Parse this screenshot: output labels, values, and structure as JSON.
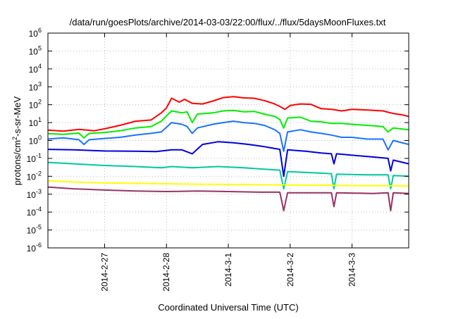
{
  "chart_data": {
    "type": "line",
    "title": "/data/run/goesPlots/archive/2014-03-03/22:00/flux/../flux/5daysMoonFluxes.txt",
    "xlabel": "Coordinated Universal Time (UTC)",
    "ylabel": {
      "pre": "protons/cm",
      "sup": "2",
      "post": "-s-sr-MeV"
    },
    "y_scale": "log",
    "ylim": [
      1e-06,
      1000000.0
    ],
    "y_ticks": [
      {
        "value": 1e-06,
        "exp": "-6"
      },
      {
        "value": 1e-05,
        "exp": "-5"
      },
      {
        "value": 0.0001,
        "exp": "-4"
      },
      {
        "value": 0.001,
        "exp": "-3"
      },
      {
        "value": 0.01,
        "exp": "-2"
      },
      {
        "value": 0.1,
        "exp": "-1"
      },
      {
        "value": 1,
        "exp": "0"
      },
      {
        "value": 10,
        "exp": "1"
      },
      {
        "value": 100,
        "exp": "2"
      },
      {
        "value": 1000,
        "exp": "3"
      },
      {
        "value": 10000,
        "exp": "4"
      },
      {
        "value": 100000,
        "exp": "5"
      },
      {
        "value": 1000000,
        "exp": "6"
      }
    ],
    "y_tick_base": "10",
    "xlim": [
      "2014-02-26T02:00",
      "2014-03-03T22:00"
    ],
    "x_ticks": [
      "2014-2-27",
      "2014-2-28",
      "2014-3-1",
      "2014-3-2",
      "2014-3-3"
    ],
    "x_tick_dates": [
      "2014-02-27T00:00",
      "2014-02-28T00:00",
      "2014-03-01T00:00",
      "2014-03-02T00:00",
      "2014-03-03T00:00"
    ],
    "grid": true,
    "series": [
      {
        "color": "#ff0000",
        "points": [
          [
            "2014-02-26T02:00",
            3.8
          ],
          [
            "2014-02-26T08:00",
            3.3
          ],
          [
            "2014-02-26T14:00",
            4.2
          ],
          [
            "2014-02-26T20:00",
            3.5
          ],
          [
            "2014-02-27T00:00",
            4.5
          ],
          [
            "2014-02-27T06:00",
            7
          ],
          [
            "2014-02-27T12:00",
            12
          ],
          [
            "2014-02-27T18:00",
            14
          ],
          [
            "2014-02-27T22:00",
            35
          ],
          [
            "2014-02-28T00:00",
            65
          ],
          [
            "2014-02-28T02:00",
            230
          ],
          [
            "2014-02-28T05:00",
            140
          ],
          [
            "2014-02-28T07:00",
            200
          ],
          [
            "2014-02-28T10:00",
            120
          ],
          [
            "2014-02-28T14:00",
            110
          ],
          [
            "2014-02-28T18:00",
            160
          ],
          [
            "2014-02-28T22:00",
            250
          ],
          [
            "2014-03-01T02:00",
            280
          ],
          [
            "2014-03-01T06:00",
            240
          ],
          [
            "2014-03-01T10:00",
            230
          ],
          [
            "2014-03-01T14:00",
            170
          ],
          [
            "2014-03-01T18:00",
            110
          ],
          [
            "2014-03-01T20:00",
            80
          ],
          [
            "2014-03-01T22:00",
            55
          ],
          [
            "2014-03-02T00:00",
            90
          ],
          [
            "2014-03-02T04:00",
            110
          ],
          [
            "2014-03-02T08:00",
            105
          ],
          [
            "2014-03-02T12:00",
            60
          ],
          [
            "2014-03-02T16:00",
            55
          ],
          [
            "2014-03-02T20:00",
            45
          ],
          [
            "2014-03-03T00:00",
            55
          ],
          [
            "2014-03-03T06:00",
            50
          ],
          [
            "2014-03-03T12:00",
            45
          ],
          [
            "2014-03-03T16:00",
            32
          ],
          [
            "2014-03-03T19:00",
            28
          ],
          [
            "2014-03-03T22:00",
            22
          ]
        ]
      },
      {
        "color": "#00ee00",
        "points": [
          [
            "2014-02-26T02:00",
            2.4
          ],
          [
            "2014-02-26T08:00",
            2.2
          ],
          [
            "2014-02-26T14:00",
            2.6
          ],
          [
            "2014-02-26T16:00",
            1.4
          ],
          [
            "2014-02-26T18:00",
            2.5
          ],
          [
            "2014-02-27T00:00",
            2.8
          ],
          [
            "2014-02-27T06:00",
            3.5
          ],
          [
            "2014-02-27T12:00",
            5
          ],
          [
            "2014-02-27T18:00",
            6
          ],
          [
            "2014-02-27T22:00",
            12
          ],
          [
            "2014-02-28T02:00",
            45
          ],
          [
            "2014-02-28T06:00",
            35
          ],
          [
            "2014-02-28T08:00",
            40
          ],
          [
            "2014-02-28T10:00",
            10
          ],
          [
            "2014-02-28T12:00",
            30
          ],
          [
            "2014-02-28T18:00",
            35
          ],
          [
            "2014-02-28T22:00",
            45
          ],
          [
            "2014-03-01T02:00",
            48
          ],
          [
            "2014-03-01T06:00",
            40
          ],
          [
            "2014-03-01T10:00",
            42
          ],
          [
            "2014-03-01T14:00",
            30
          ],
          [
            "2014-03-01T18:00",
            22
          ],
          [
            "2014-03-01T20:00",
            15
          ],
          [
            "2014-03-01T21:30",
            5
          ],
          [
            "2014-03-01T23:00",
            18
          ],
          [
            "2014-03-02T04:00",
            20
          ],
          [
            "2014-03-02T08:00",
            12
          ],
          [
            "2014-03-02T12:00",
            11
          ],
          [
            "2014-03-02T16:00",
            9
          ],
          [
            "2014-03-02T20:00",
            9
          ],
          [
            "2014-03-03T00:00",
            8
          ],
          [
            "2014-03-03T06:00",
            7
          ],
          [
            "2014-03-03T12:00",
            6
          ],
          [
            "2014-03-03T14:00",
            3
          ],
          [
            "2014-03-03T16:00",
            5
          ],
          [
            "2014-03-03T22:00",
            4
          ]
        ]
      },
      {
        "color": "#1874ff",
        "points": [
          [
            "2014-02-26T02:00",
            1.2
          ],
          [
            "2014-02-26T08:00",
            1.4
          ],
          [
            "2014-02-26T14:00",
            1.1
          ],
          [
            "2014-02-26T16:00",
            0.6
          ],
          [
            "2014-02-26T18:00",
            1.1
          ],
          [
            "2014-02-27T00:00",
            1.3
          ],
          [
            "2014-02-27T06:00",
            1.5
          ],
          [
            "2014-02-27T12:00",
            2
          ],
          [
            "2014-02-27T18:00",
            2.5
          ],
          [
            "2014-02-27T22:00",
            3
          ],
          [
            "2014-02-28T02:00",
            10
          ],
          [
            "2014-02-28T06:00",
            8
          ],
          [
            "2014-02-28T08:00",
            6
          ],
          [
            "2014-02-28T10:00",
            2.5
          ],
          [
            "2014-02-28T12:00",
            5
          ],
          [
            "2014-02-28T18:00",
            8
          ],
          [
            "2014-02-28T22:00",
            10
          ],
          [
            "2014-03-01T02:00",
            12
          ],
          [
            "2014-03-01T06:00",
            10
          ],
          [
            "2014-03-01T10:00",
            9
          ],
          [
            "2014-03-01T14:00",
            7
          ],
          [
            "2014-03-01T18:00",
            4
          ],
          [
            "2014-03-01T20:00",
            2.5
          ],
          [
            "2014-03-01T21:30",
            0.25
          ],
          [
            "2014-03-01T23:00",
            3
          ],
          [
            "2014-03-02T04:00",
            4
          ],
          [
            "2014-03-02T08:00",
            3
          ],
          [
            "2014-03-02T12:00",
            2.5
          ],
          [
            "2014-03-02T16:00",
            2
          ],
          [
            "2014-03-02T20:00",
            1.5
          ],
          [
            "2014-03-03T00:00",
            1.5
          ],
          [
            "2014-03-03T06:00",
            1.2
          ],
          [
            "2014-03-03T12:00",
            1.2
          ],
          [
            "2014-03-03T14:00",
            0.3
          ],
          [
            "2014-03-03T16:00",
            1
          ],
          [
            "2014-03-03T22:00",
            0.6
          ]
        ]
      },
      {
        "color": "#0000dd",
        "points": [
          [
            "2014-02-26T02:00",
            0.32
          ],
          [
            "2014-02-26T12:00",
            0.3
          ],
          [
            "2014-02-27T00:00",
            0.26
          ],
          [
            "2014-02-27T12:00",
            0.25
          ],
          [
            "2014-02-27T20:00",
            0.24
          ],
          [
            "2014-02-28T02:00",
            0.3
          ],
          [
            "2014-02-28T06:00",
            0.3
          ],
          [
            "2014-02-28T10:00",
            0.18
          ],
          [
            "2014-02-28T14:00",
            0.6
          ],
          [
            "2014-02-28T20:00",
            0.85
          ],
          [
            "2014-03-01T02:00",
            0.75
          ],
          [
            "2014-03-01T08:00",
            0.6
          ],
          [
            "2014-03-01T14:00",
            0.45
          ],
          [
            "2014-03-01T20:00",
            0.32
          ],
          [
            "2014-03-01T21:30",
            0.01
          ],
          [
            "2014-03-01T23:00",
            0.3
          ],
          [
            "2014-03-02T06:00",
            0.25
          ],
          [
            "2014-03-02T12:00",
            0.2
          ],
          [
            "2014-03-02T16:00",
            0.18
          ],
          [
            "2014-03-02T17:00",
            0.05
          ],
          [
            "2014-03-02T18:00",
            0.18
          ],
          [
            "2014-03-03T00:00",
            0.15
          ],
          [
            "2014-03-03T08:00",
            0.12
          ],
          [
            "2014-03-03T14:00",
            0.1
          ],
          [
            "2014-03-03T15:00",
            0.02
          ],
          [
            "2014-03-03T16:00",
            0.08
          ],
          [
            "2014-03-03T22:00",
            0.05
          ]
        ]
      },
      {
        "color": "#00c8a0",
        "points": [
          [
            "2014-02-26T02:00",
            0.06
          ],
          [
            "2014-02-26T12:00",
            0.05
          ],
          [
            "2014-02-27T00:00",
            0.04
          ],
          [
            "2014-02-27T12:00",
            0.035
          ],
          [
            "2014-02-27T22:00",
            0.03
          ],
          [
            "2014-02-28T02:00",
            0.035
          ],
          [
            "2014-02-28T10:00",
            0.03
          ],
          [
            "2014-02-28T20:00",
            0.035
          ],
          [
            "2014-03-01T06:00",
            0.03
          ],
          [
            "2014-03-01T14:00",
            0.025
          ],
          [
            "2014-03-01T20:00",
            0.022
          ],
          [
            "2014-03-01T21:30",
            0.002
          ],
          [
            "2014-03-01T23:00",
            0.018
          ],
          [
            "2014-03-02T08:00",
            0.016
          ],
          [
            "2014-03-02T16:00",
            0.014
          ],
          [
            "2014-03-02T17:00",
            0.002
          ],
          [
            "2014-03-02T18:00",
            0.013
          ],
          [
            "2014-03-03T06:00",
            0.012
          ],
          [
            "2014-03-03T14:00",
            0.012
          ],
          [
            "2014-03-03T15:00",
            0.002
          ],
          [
            "2014-03-03T16:00",
            0.011
          ],
          [
            "2014-03-03T22:00",
            0.01
          ]
        ]
      },
      {
        "color": "#ffff00",
        "points": [
          [
            "2014-02-26T02:00",
            0.0055
          ],
          [
            "2014-02-26T12:00",
            0.0048
          ],
          [
            "2014-02-27T00:00",
            0.0042
          ],
          [
            "2014-02-27T12:00",
            0.004
          ],
          [
            "2014-02-28T00:00",
            0.0038
          ],
          [
            "2014-02-28T12:00",
            0.0036
          ],
          [
            "2014-03-01T00:00",
            0.0035
          ],
          [
            "2014-03-01T12:00",
            0.0034
          ],
          [
            "2014-03-01T21:00",
            0.0033
          ],
          [
            "2014-03-02T12:00",
            0.0032
          ],
          [
            "2014-03-03T00:00",
            0.003
          ],
          [
            "2014-03-03T12:00",
            0.003
          ],
          [
            "2014-03-03T22:00",
            0.0029
          ]
        ]
      },
      {
        "color": "#993366",
        "points": [
          [
            "2014-02-26T02:00",
            0.0025
          ],
          [
            "2014-02-26T12:00",
            0.002
          ],
          [
            "2014-02-27T00:00",
            0.0017
          ],
          [
            "2014-02-27T12:00",
            0.0015
          ],
          [
            "2014-02-28T00:00",
            0.0014
          ],
          [
            "2014-02-28T12:00",
            0.0015
          ],
          [
            "2014-03-01T00:00",
            0.0014
          ],
          [
            "2014-03-01T12:00",
            0.0013
          ],
          [
            "2014-03-01T20:00",
            0.0013
          ],
          [
            "2014-03-01T21:30",
            0.00012
          ],
          [
            "2014-03-01T23:00",
            0.0012
          ],
          [
            "2014-03-02T12:00",
            0.0012
          ],
          [
            "2014-03-02T16:00",
            0.0012
          ],
          [
            "2014-03-02T17:00",
            0.0002
          ],
          [
            "2014-03-02T18:00",
            0.0012
          ],
          [
            "2014-03-03T08:00",
            0.0011
          ],
          [
            "2014-03-03T14:00",
            0.0012
          ],
          [
            "2014-03-03T15:00",
            0.00012
          ],
          [
            "2014-03-03T16:00",
            0.0012
          ],
          [
            "2014-03-03T22:00",
            0.0011
          ]
        ]
      }
    ]
  }
}
